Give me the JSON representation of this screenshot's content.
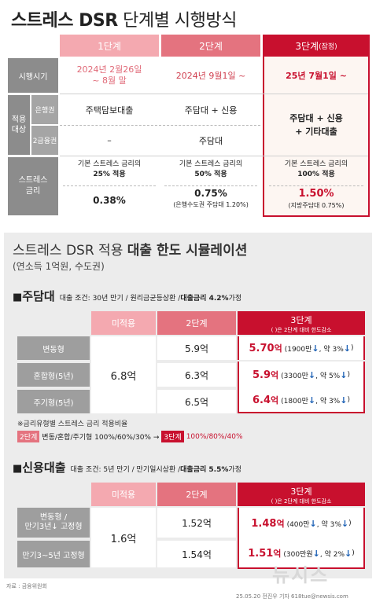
{
  "title": {
    "part1": "스트레스 DSR",
    "part2": " 단계별 시행방식"
  },
  "top": {
    "stages": [
      {
        "label": "1단계"
      },
      {
        "label": "2단계"
      },
      {
        "label": "3단계",
        "note": "(잠정)"
      }
    ],
    "rows": {
      "timing": {
        "label": "시행시기",
        "s1": "2024년 2월26일\n~ 8월 말",
        "s2": "2024년 9월1일 ~",
        "s3": "25년 7월1일 ~"
      },
      "target_label": "적용\n대상",
      "bank": {
        "label": "은행권",
        "s1": "주택담보대출",
        "s2": "주담대 + 신용",
        "s3": "주담대 + 신용\n+ 기타대출"
      },
      "second": {
        "label": "2금융권",
        "s1": "–",
        "s2": "주담대"
      },
      "rate": {
        "label": "스트레스\n금리",
        "s1_desc": "기본 스트레스 금리의",
        "s1_pct": "25% 적용",
        "s1_val": "0.38%",
        "s2_desc": "기본 스트레스 금리의",
        "s2_pct": "50% 적용",
        "s2_val": "0.75%",
        "s2_sub": "(은행수도권 주담대 1.20%)",
        "s3_desc": "기본 스트레스 금리의",
        "s3_pct": "100% 적용",
        "s3_val": "1.50%",
        "s3_sub": "(지방주담대 0.75%)"
      }
    }
  },
  "sim": {
    "title_light": "스트레스 DSR 적용 ",
    "title_bold": "대출 한도 시뮬레이션",
    "subtitle": "(연소득 1억원, 수도권)",
    "mortgage": {
      "name": "주담대",
      "cond": "대출 조건: 30년 만기 / 원리금균등상환 / ",
      "cond_bold": "대출금리 4.2%",
      " cond_end": "",
      "cond_tail": " 가정",
      "h_none": "미적용",
      "h_s2": "2단계",
      "h_s3": "3단계",
      "h_s3_sub": "( )은 2단계 대비 한도감소",
      "none_val": "6.8억",
      "rows": [
        {
          "label": "변동형",
          "s2": "5.9억",
          "s3": "5.70",
          "s3_unit": "억",
          "s3_note": "(1900만",
          "s3_pct": ", 약 3%"
        },
        {
          "label": "혼합형(5년)",
          "s2": "6.3억",
          "s3": "5.9",
          "s3_unit": "억",
          "s3_note": "(3300만",
          "s3_pct": ", 약 5%"
        },
        {
          "label": "주기형(5년)",
          "s2": "6.5억",
          "s3": "6.4",
          "s3_unit": "억",
          "s3_note": "(1800만",
          "s3_pct": ", 약 3%"
        }
      ],
      "note_line": "※금리유형별 스트레스 금리 적용비율",
      "ratio_tag1": "2단계",
      "ratio_text1": "변동/혼합/주기형 100%/60%/30% →",
      "ratio_tag2": "3단계",
      "ratio_text2": "100%/80%/40%"
    },
    "credit": {
      "name": "신용대출",
      "cond": "대출 조건: 5년 만기 / 만기일시상환 / ",
      "cond_bold": "대출금리 5.5%",
      "cond_tail": " 가정",
      "h_none": "미적용",
      "h_s2": "2단계",
      "h_s3": "3단계",
      "h_s3_sub": "( )은 2단계 대비 한도감소",
      "none_val": "1.6억",
      "rows": [
        {
          "label": "변동형 /\n만기3년↓ 고정형",
          "s2": "1.52억",
          "s3": "1.48",
          "s3_unit": "억",
          "s3_note": "(400만",
          "s3_pct": ", 약 3%"
        },
        {
          "label": "만기3~5년 고정형",
          "s2": "1.54억",
          "s3": "1.51",
          "s3_unit": "억",
          "s3_note": "(300만원",
          "s3_pct": ", 약 2%"
        }
      ]
    }
  },
  "footer": {
    "source": "자료 : 금융위원회",
    "credit": "25.05.20 전진우 기자 618tue@newsis.com",
    "logo": "뉴시스"
  },
  "colors": {
    "stage1": "#f4a9b0",
    "stage2": "#e4737f",
    "stage3": "#c8102e",
    "accent": "#c8102e",
    "arrow": "#1a5fb4"
  }
}
